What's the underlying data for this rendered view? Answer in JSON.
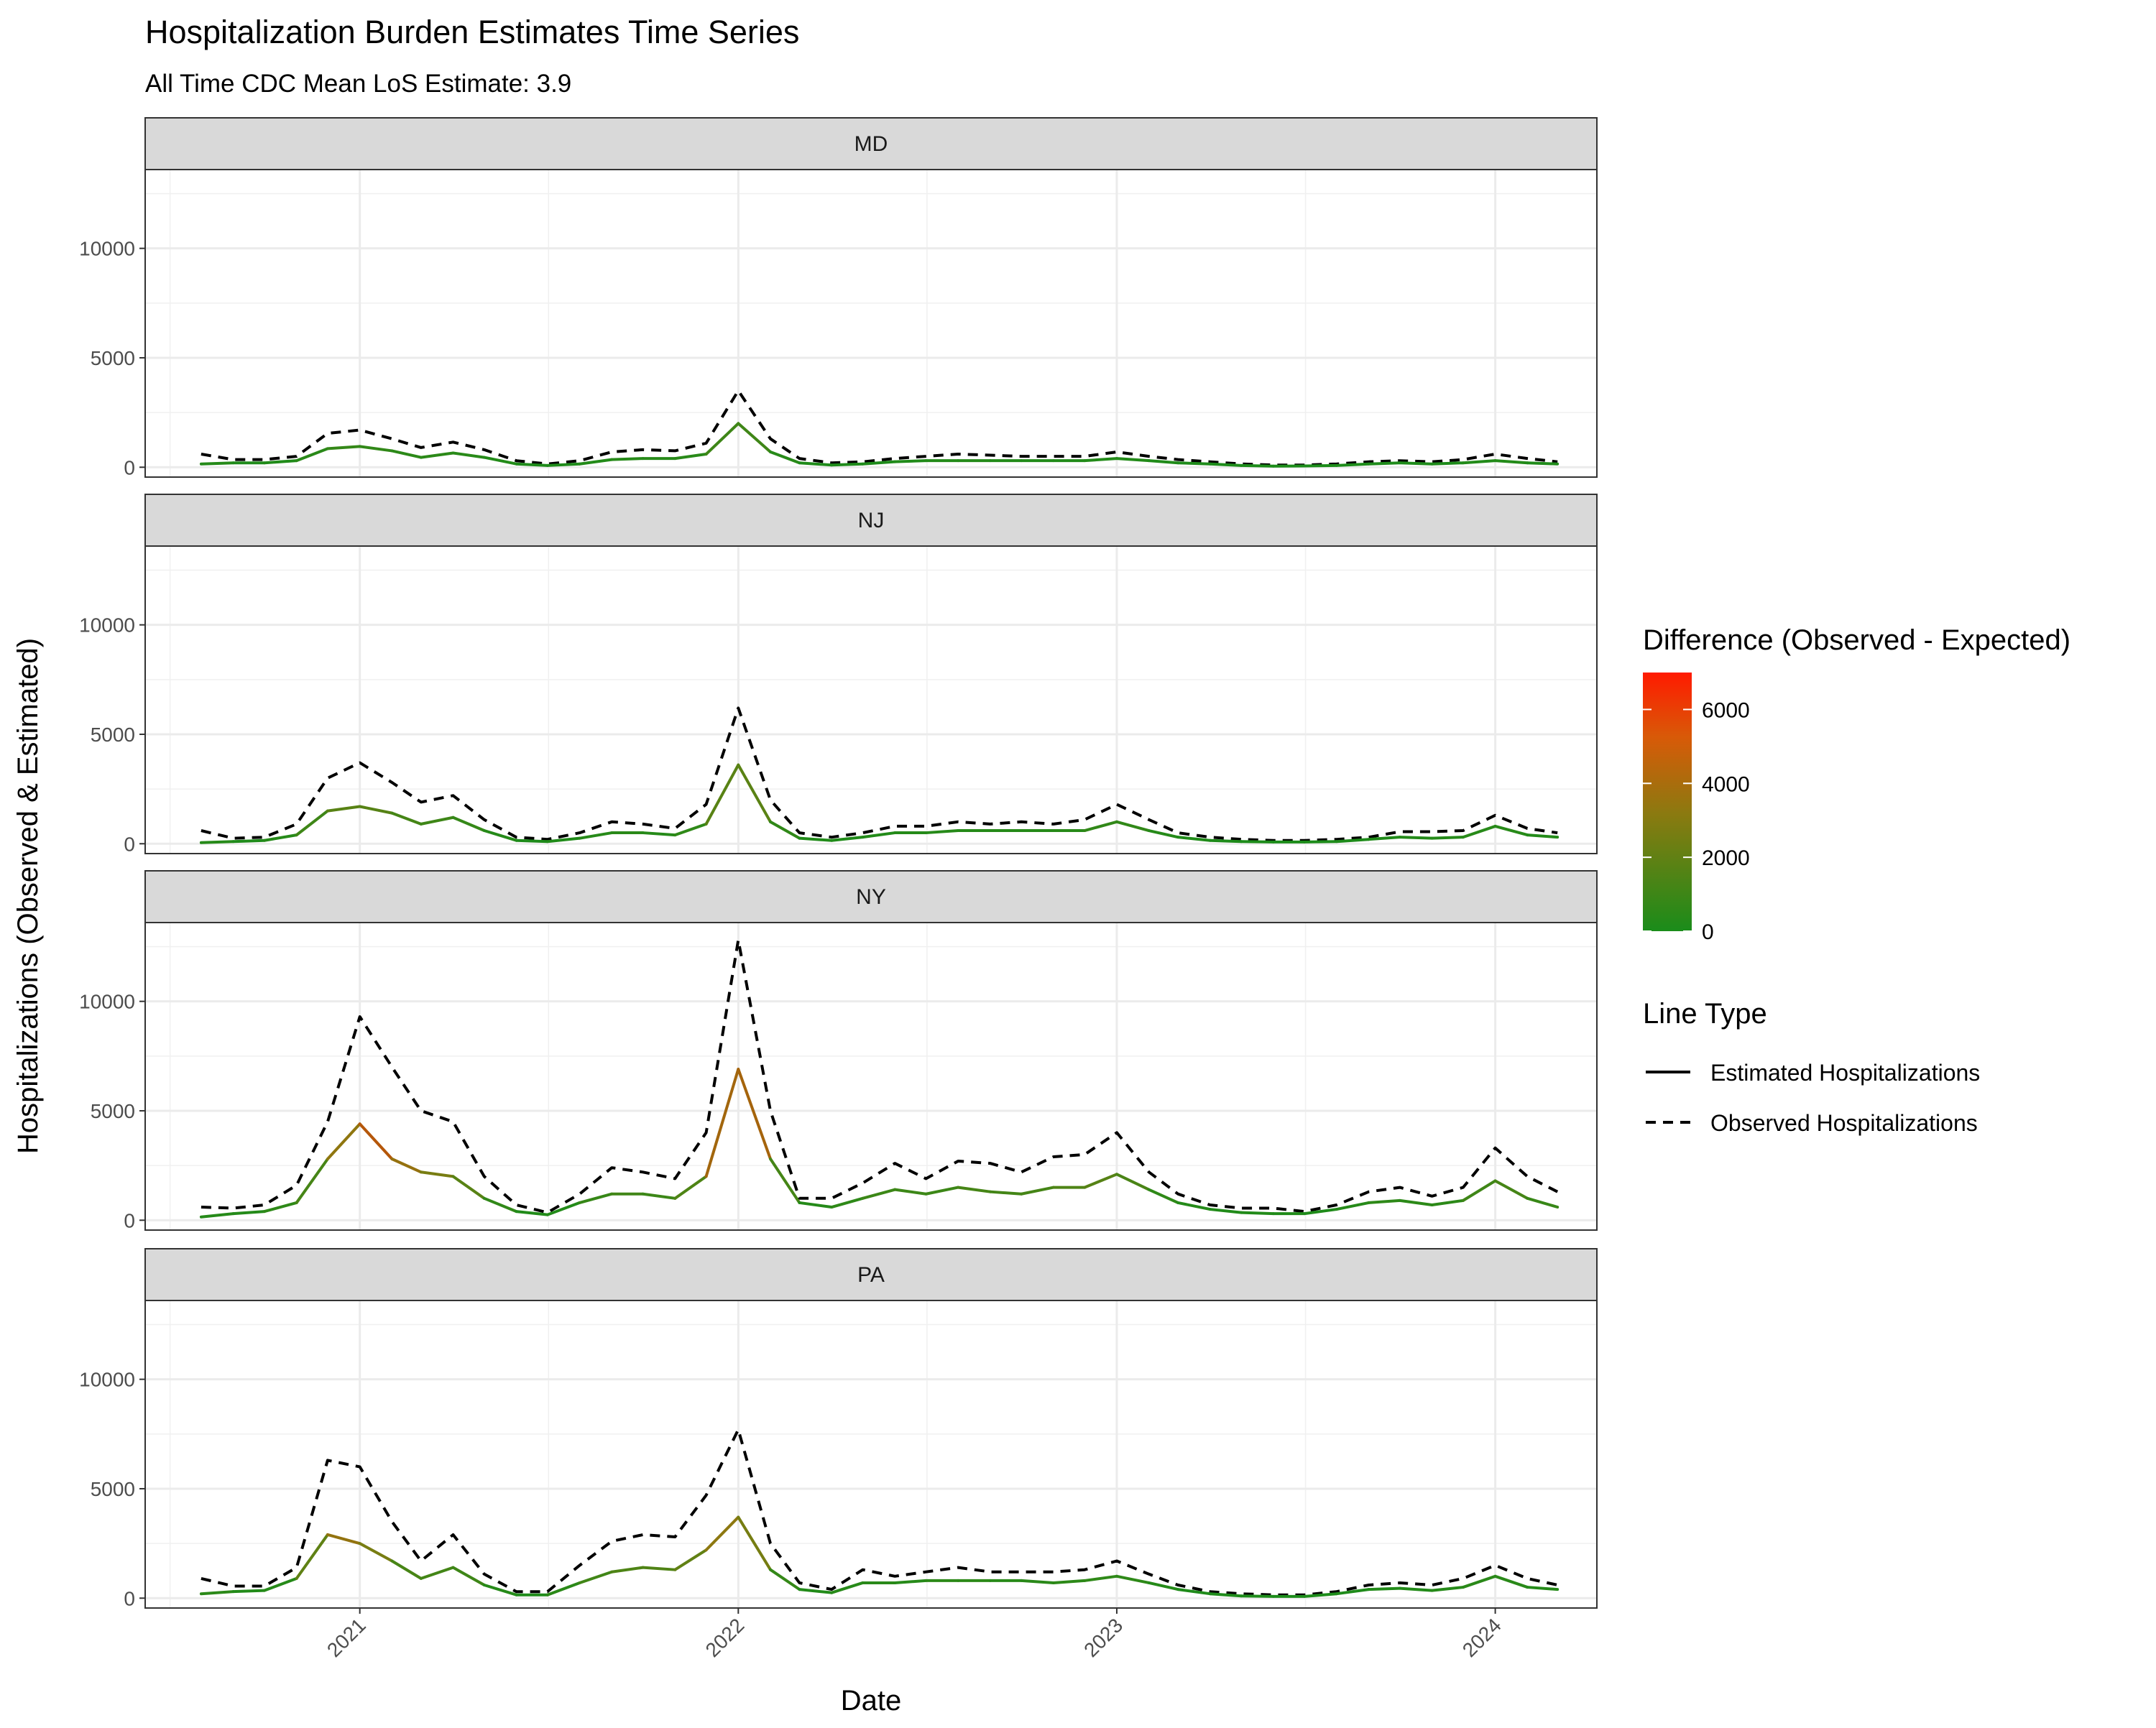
{
  "chart_data": {
    "type": "line",
    "title": "Hospitalization Burden Estimates Time Series",
    "subtitle": "All Time CDC Mean LoS Estimate: 3.9",
    "xlabel": "Date",
    "ylabel": "Hospitalizations (Observed & Estimated)",
    "x_ticks": [
      "2021",
      "2022",
      "2023",
      "2024"
    ],
    "y_ticks": [
      0,
      5000,
      10000
    ],
    "ylim": [
      -450,
      13600
    ],
    "xlim": [
      "2020-06-08",
      "2024-04-08"
    ],
    "grid": true,
    "facets": [
      "MD",
      "NJ",
      "NY",
      "PA"
    ],
    "color_legend": {
      "title": "Difference (Observed - Expected)",
      "ticks": [
        0,
        2000,
        4000,
        6000
      ],
      "range": [
        0,
        7000
      ],
      "low_color": "#1a8c1a",
      "mid_color": "#8a7a10",
      "high_color": "#ff1a00"
    },
    "linetype_legend": {
      "title": "Line Type",
      "items": [
        "Estimated Hospitalizations",
        "Observed Hospitalizations"
      ]
    },
    "panels": [
      {
        "name": "MD",
        "x": [
          "2020-08-01",
          "2020-09-01",
          "2020-10-01",
          "2020-11-01",
          "2020-12-01",
          "2021-01-01",
          "2021-02-01",
          "2021-03-01",
          "2021-04-01",
          "2021-05-01",
          "2021-06-01",
          "2021-07-01",
          "2021-08-01",
          "2021-09-01",
          "2021-10-01",
          "2021-11-01",
          "2021-12-01",
          "2022-01-01",
          "2022-02-01",
          "2022-03-01",
          "2022-04-01",
          "2022-05-01",
          "2022-06-01",
          "2022-07-01",
          "2022-08-01",
          "2022-09-01",
          "2022-10-01",
          "2022-11-01",
          "2022-12-01",
          "2023-01-01",
          "2023-02-01",
          "2023-03-01",
          "2023-04-01",
          "2023-05-01",
          "2023-06-01",
          "2023-07-01",
          "2023-08-01",
          "2023-09-01",
          "2023-10-01",
          "2023-11-01",
          "2023-12-01",
          "2024-01-01",
          "2024-02-01",
          "2024-03-01"
        ],
        "observed": [
          600,
          350,
          350,
          500,
          1550,
          1700,
          1300,
          900,
          1150,
          800,
          300,
          150,
          300,
          700,
          800,
          750,
          1100,
          3500,
          1300,
          400,
          200,
          250,
          400,
          500,
          600,
          550,
          500,
          500,
          500,
          700,
          500,
          350,
          250,
          150,
          100,
          100,
          150,
          250,
          300,
          250,
          350,
          600,
          400,
          250
        ],
        "estimated": [
          150,
          200,
          200,
          300,
          850,
          950,
          750,
          450,
          650,
          450,
          150,
          80,
          150,
          350,
          400,
          400,
          600,
          2000,
          700,
          200,
          100,
          150,
          250,
          300,
          300,
          300,
          300,
          300,
          300,
          400,
          300,
          200,
          150,
          80,
          50,
          60,
          80,
          150,
          200,
          150,
          200,
          300,
          200,
          150
        ]
      },
      {
        "name": "NJ",
        "x": [
          "2020-08-01",
          "2020-09-01",
          "2020-10-01",
          "2020-11-01",
          "2020-12-01",
          "2021-01-01",
          "2021-02-01",
          "2021-03-01",
          "2021-04-01",
          "2021-05-01",
          "2021-06-01",
          "2021-07-01",
          "2021-08-01",
          "2021-09-01",
          "2021-10-01",
          "2021-11-01",
          "2021-12-01",
          "2022-01-01",
          "2022-02-01",
          "2022-03-01",
          "2022-04-01",
          "2022-05-01",
          "2022-06-01",
          "2022-07-01",
          "2022-08-01",
          "2022-09-01",
          "2022-10-01",
          "2022-11-01",
          "2022-12-01",
          "2023-01-01",
          "2023-02-01",
          "2023-03-01",
          "2023-04-01",
          "2023-05-01",
          "2023-06-01",
          "2023-07-01",
          "2023-08-01",
          "2023-09-01",
          "2023-10-01",
          "2023-11-01",
          "2023-12-01",
          "2024-01-01",
          "2024-02-01",
          "2024-03-01"
        ],
        "observed": [
          600,
          250,
          300,
          900,
          3000,
          3700,
          2800,
          1900,
          2200,
          1100,
          300,
          200,
          500,
          1000,
          900,
          700,
          1800,
          6200,
          2000,
          500,
          300,
          500,
          800,
          800,
          1000,
          900,
          1000,
          900,
          1100,
          1800,
          1100,
          500,
          300,
          200,
          150,
          150,
          200,
          300,
          550,
          550,
          600,
          1300,
          700,
          500
        ],
        "estimated": [
          50,
          100,
          150,
          400,
          1500,
          1700,
          1400,
          900,
          1200,
          600,
          150,
          100,
          250,
          500,
          500,
          400,
          900,
          3600,
          1000,
          250,
          150,
          300,
          500,
          500,
          600,
          600,
          600,
          600,
          600,
          1000,
          600,
          300,
          150,
          100,
          80,
          80,
          100,
          200,
          300,
          250,
          300,
          800,
          400,
          300
        ]
      },
      {
        "name": "NY",
        "x": [
          "2020-08-01",
          "2020-09-01",
          "2020-10-01",
          "2020-11-01",
          "2020-12-01",
          "2021-01-01",
          "2021-02-01",
          "2021-03-01",
          "2021-04-01",
          "2021-05-01",
          "2021-06-01",
          "2021-07-01",
          "2021-08-01",
          "2021-09-01",
          "2021-10-01",
          "2021-11-01",
          "2021-12-01",
          "2022-01-01",
          "2022-02-01",
          "2022-03-01",
          "2022-04-01",
          "2022-05-01",
          "2022-06-01",
          "2022-07-01",
          "2022-08-01",
          "2022-09-01",
          "2022-10-01",
          "2022-11-01",
          "2022-12-01",
          "2023-01-01",
          "2023-02-01",
          "2023-03-01",
          "2023-04-01",
          "2023-05-01",
          "2023-06-01",
          "2023-07-01",
          "2023-08-01",
          "2023-09-01",
          "2023-10-01",
          "2023-11-01",
          "2023-12-01",
          "2024-01-01",
          "2024-02-01",
          "2024-03-01"
        ],
        "observed": [
          600,
          550,
          700,
          1600,
          4500,
          9300,
          7000,
          5000,
          4500,
          2000,
          700,
          350,
          1200,
          2400,
          2200,
          1900,
          4000,
          12800,
          5000,
          1000,
          1000,
          1700,
          2600,
          1900,
          2700,
          2600,
          2200,
          2900,
          3000,
          4000,
          2200,
          1200,
          700,
          550,
          550,
          400,
          700,
          1300,
          1500,
          1100,
          1500,
          3300,
          2000,
          1300
        ],
        "estimated": [
          150,
          300,
          400,
          800,
          2800,
          4400,
          2800,
          2200,
          2000,
          1000,
          400,
          250,
          800,
          1200,
          1200,
          1000,
          2000,
          6900,
          2800,
          800,
          600,
          1000,
          1400,
          1200,
          1500,
          1300,
          1200,
          1500,
          1500,
          2100,
          1400,
          800,
          500,
          350,
          300,
          300,
          500,
          800,
          900,
          700,
          900,
          1800,
          1000,
          600
        ]
      },
      {
        "name": "PA",
        "x": [
          "2020-08-01",
          "2020-09-01",
          "2020-10-01",
          "2020-11-01",
          "2020-12-01",
          "2021-01-01",
          "2021-02-01",
          "2021-03-01",
          "2021-04-01",
          "2021-05-01",
          "2021-06-01",
          "2021-07-01",
          "2021-08-01",
          "2021-09-01",
          "2021-10-01",
          "2021-11-01",
          "2021-12-01",
          "2022-01-01",
          "2022-02-01",
          "2022-03-01",
          "2022-04-01",
          "2022-05-01",
          "2022-06-01",
          "2022-07-01",
          "2022-08-01",
          "2022-09-01",
          "2022-10-01",
          "2022-11-01",
          "2022-12-01",
          "2023-01-01",
          "2023-02-01",
          "2023-03-01",
          "2023-04-01",
          "2023-05-01",
          "2023-06-01",
          "2023-07-01",
          "2023-08-01",
          "2023-09-01",
          "2023-10-01",
          "2023-11-01",
          "2023-12-01",
          "2024-01-01",
          "2024-02-01",
          "2024-03-01"
        ],
        "observed": [
          900,
          550,
          550,
          1400,
          6300,
          6000,
          3500,
          1700,
          2900,
          1100,
          300,
          300,
          1500,
          2600,
          2900,
          2800,
          4700,
          7700,
          2500,
          700,
          400,
          1300,
          1000,
          1200,
          1400,
          1200,
          1200,
          1200,
          1300,
          1700,
          1100,
          600,
          300,
          200,
          150,
          150,
          300,
          600,
          700,
          600,
          900,
          1500,
          900,
          600
        ],
        "estimated": [
          200,
          300,
          350,
          900,
          2900,
          2500,
          1700,
          900,
          1400,
          600,
          150,
          150,
          700,
          1200,
          1400,
          1300,
          2200,
          3700,
          1300,
          400,
          250,
          700,
          700,
          800,
          800,
          800,
          800,
          700,
          800,
          1000,
          700,
          400,
          200,
          100,
          80,
          80,
          200,
          400,
          450,
          350,
          500,
          1000,
          500,
          400
        ]
      }
    ]
  }
}
